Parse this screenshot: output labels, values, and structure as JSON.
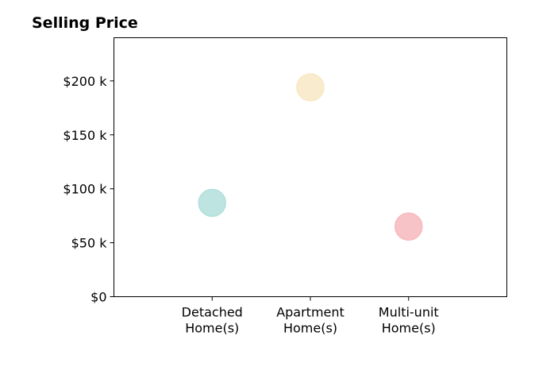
{
  "chart_data": {
    "type": "scatter",
    "title": "Selling Price",
    "xlabel": "",
    "ylabel": "",
    "categories": [
      "Detached\nHome(s)",
      "Apartment\nHome(s)",
      "Multi-unit\nHome(s)"
    ],
    "values": [
      87000,
      194000,
      65000
    ],
    "colors": [
      "#b2dfdb",
      "#f8e7c4",
      "#f6b9bd"
    ],
    "ylim": [
      0,
      240000
    ],
    "yticks": [
      {
        "value": 0,
        "label": "$0"
      },
      {
        "value": 50000,
        "label": "$50 k"
      },
      {
        "value": 100000,
        "label": "$100 k"
      },
      {
        "value": 150000,
        "label": "$150 k"
      },
      {
        "value": 200000,
        "label": "$200 k"
      }
    ],
    "grid": false,
    "legend": "none"
  }
}
